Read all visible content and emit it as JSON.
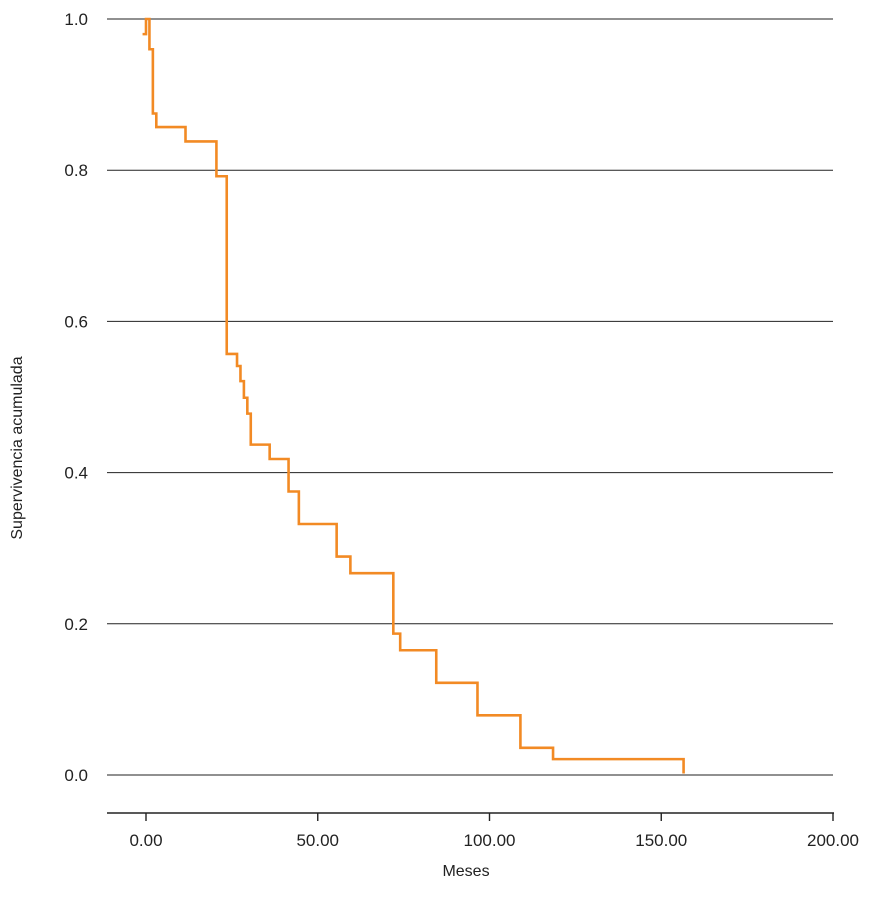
{
  "chart_data": {
    "type": "line",
    "title": "",
    "xlabel": "Meses",
    "ylabel": "Supervivencia acumulada",
    "xlim": [
      0,
      200
    ],
    "ylim": [
      0,
      1.0
    ],
    "xticks": [
      0,
      50,
      100,
      150,
      200
    ],
    "xtick_labels": [
      "0.00",
      "50.00",
      "100.00",
      "150.00",
      "200.00"
    ],
    "yticks": [
      0,
      0.2,
      0.4,
      0.6,
      0.8,
      1.0
    ],
    "ytick_labels": [
      "0.0",
      "0.2",
      "0.4",
      "0.6",
      "0.8",
      "1.0"
    ],
    "grid": "horizontal",
    "series": [
      {
        "color": "#F28A24",
        "step": "post",
        "x": [
          -1,
          0,
          1,
          2,
          3,
          11.5,
          20.5,
          23.5,
          24,
          26.5,
          27.5,
          28.5,
          29.5,
          30.5,
          31.5,
          36,
          41.5,
          44.5,
          55.5,
          59.5,
          72,
          74,
          84.5,
          96.5,
          109,
          118.5,
          156.5
        ],
        "y": [
          0.98,
          1.0,
          0.96,
          0.875,
          0.857,
          0.838,
          0.792,
          0.557,
          0.557,
          0.541,
          0.521,
          0.499,
          0.478,
          0.437,
          0.437,
          0.418,
          0.375,
          0.332,
          0.289,
          0.267,
          0.187,
          0.165,
          0.122,
          0.079,
          0.036,
          0.021,
          0.002
        ]
      }
    ]
  }
}
